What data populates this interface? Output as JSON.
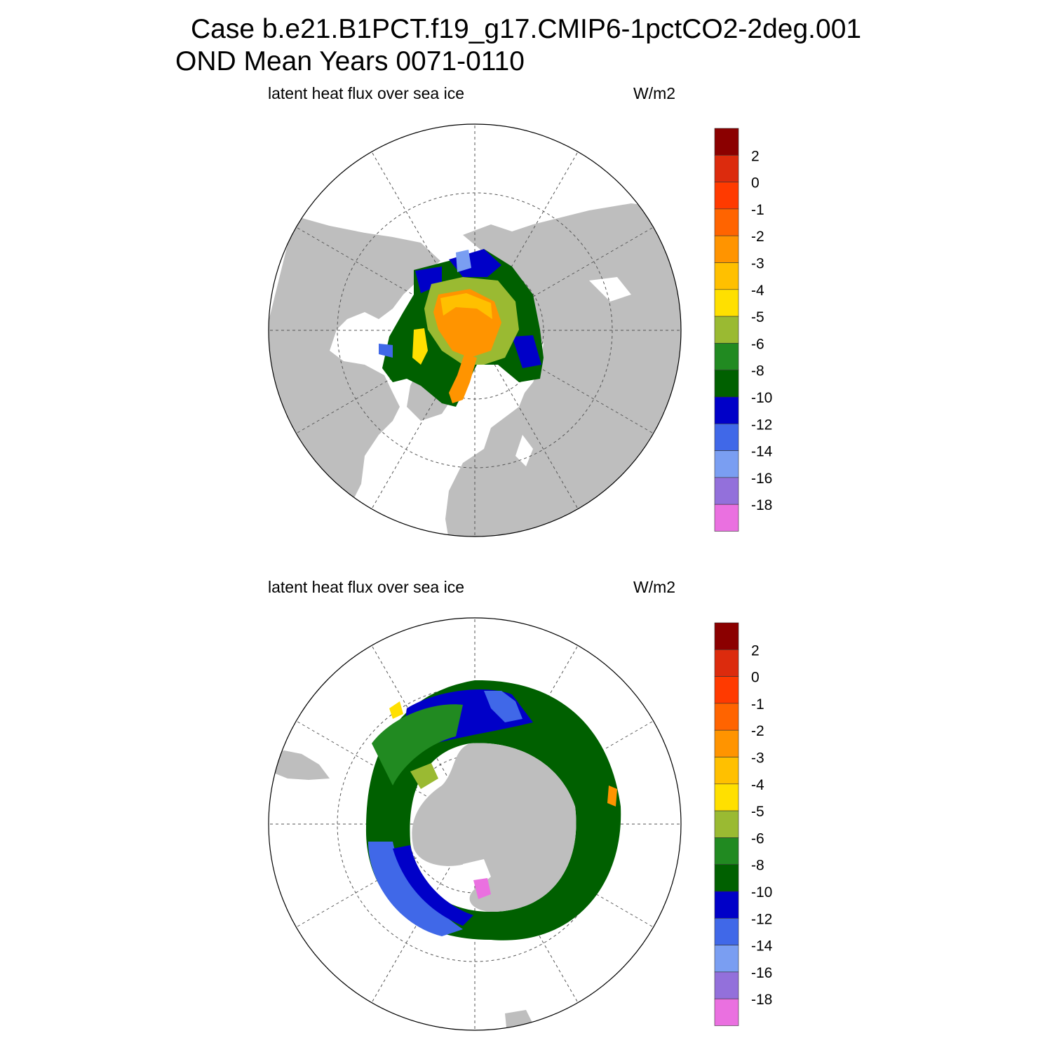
{
  "header": {
    "case_line": "Case b.e21.B1PCT.f19_g17.CMIP6-1pctCO2-2deg.001",
    "period_line": "OND Mean   Years 0071-0110"
  },
  "colors": {
    "land": "#bebebe",
    "ocean": "#ffffff",
    "grid_line": "#555555"
  },
  "panels": [
    {
      "variable_label": "latent heat flux over sea ice",
      "units": "W/m2",
      "hemisphere": "north"
    },
    {
      "variable_label": "latent heat flux over sea ice",
      "units": "W/m2",
      "hemisphere": "south"
    }
  ],
  "colorbar": {
    "tick_labels": [
      "2",
      "0",
      "-1",
      "-2",
      "-3",
      "-4",
      "-5",
      "-6",
      "-8",
      "-10",
      "-12",
      "-14",
      "-16",
      "-18"
    ],
    "colors": [
      "#8b0000",
      "#dc2b0d",
      "#ff3a00",
      "#ff6400",
      "#ff9400",
      "#ffc000",
      "#ffe000",
      "#9aba32",
      "#218a21",
      "#006000",
      "#0000c8",
      "#4068e8",
      "#7a9ef2",
      "#9370db",
      "#ea70e0"
    ]
  }
}
